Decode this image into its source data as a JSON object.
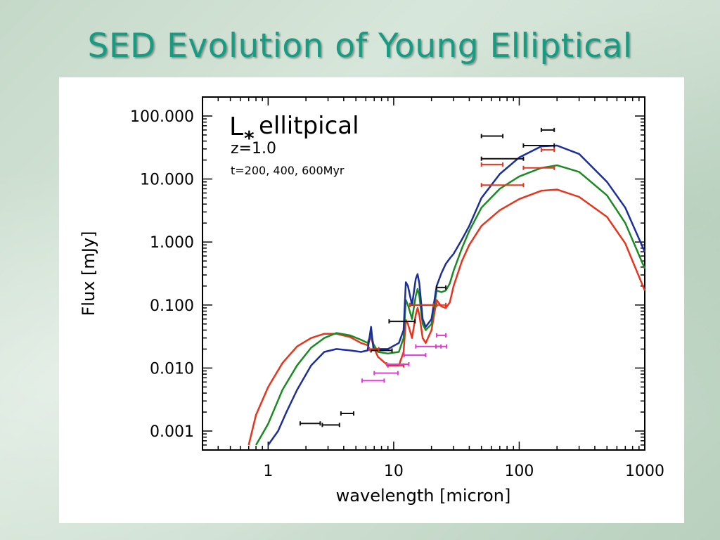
{
  "slide": {
    "title": "SED Evolution of Young Elliptical"
  },
  "chart_data": {
    "type": "line",
    "xlabel": "wavelength [micron]",
    "ylabel": "Flux [mJy]",
    "xscale": "log",
    "yscale": "log",
    "xlim": [
      0.3,
      1000
    ],
    "ylim": [
      0.0005,
      200
    ],
    "xticks": [
      {
        "v": 1,
        "label": "1"
      },
      {
        "v": 10,
        "label": "10"
      },
      {
        "v": 100,
        "label": "100"
      },
      {
        "v": 1000,
        "label": "1000"
      }
    ],
    "yticks": [
      {
        "v": 0.001,
        "label": "0.001"
      },
      {
        "v": 0.01,
        "label": "0.010"
      },
      {
        "v": 0.1,
        "label": "0.100"
      },
      {
        "v": 1,
        "label": "1.000"
      },
      {
        "v": 10,
        "label": "10.000"
      },
      {
        "v": 100,
        "label": "100.000"
      }
    ],
    "annotations": {
      "line1_main": "L",
      "line1_sub": "*",
      "line1_rest": " ellitpical",
      "line2": "z=1.0",
      "line3": "t=200, 400, 600Myr"
    },
    "series": [
      {
        "color": "#e8341c",
        "x": [
          0.7,
          0.8,
          1,
          1.3,
          1.7,
          2.2,
          2.8,
          3.5,
          4.5,
          5.5,
          6.2,
          6.6,
          6.9,
          7.5,
          9,
          11,
          12,
          12.5,
          13,
          14,
          15,
          15.5,
          16,
          17,
          18,
          20,
          22,
          24,
          26,
          28,
          30,
          35,
          40,
          50,
          70,
          100,
          150,
          200,
          300,
          500,
          700,
          1000
        ],
        "y": [
          0.0006,
          0.0018,
          0.005,
          0.012,
          0.022,
          0.03,
          0.035,
          0.035,
          0.031,
          0.025,
          0.023,
          0.032,
          0.022,
          0.015,
          0.011,
          0.011,
          0.018,
          0.058,
          0.05,
          0.03,
          0.07,
          0.09,
          0.07,
          0.03,
          0.025,
          0.04,
          0.12,
          0.095,
          0.09,
          0.11,
          0.2,
          0.5,
          0.9,
          1.8,
          3.2,
          4.8,
          6.5,
          6.8,
          5.2,
          2.5,
          0.95,
          0.17
        ]
      },
      {
        "color": "#1a8a22",
        "x": [
          0.8,
          0.9,
          1,
          1.3,
          1.7,
          2.2,
          2.8,
          3.5,
          4.5,
          5.5,
          6.2,
          6.6,
          6.9,
          7.5,
          9,
          11,
          12,
          12.5,
          13,
          14,
          15,
          15.5,
          16,
          17,
          18,
          20,
          22,
          24,
          26,
          28,
          30,
          35,
          40,
          50,
          70,
          100,
          150,
          200,
          300,
          500,
          700,
          1000
        ],
        "y": [
          0.0006,
          0.0009,
          0.0013,
          0.0045,
          0.011,
          0.021,
          0.03,
          0.036,
          0.033,
          0.028,
          0.025,
          0.035,
          0.024,
          0.018,
          0.017,
          0.018,
          0.03,
          0.12,
          0.1,
          0.06,
          0.14,
          0.18,
          0.14,
          0.05,
          0.04,
          0.05,
          0.17,
          0.16,
          0.17,
          0.22,
          0.35,
          0.8,
          1.5,
          3.5,
          7,
          11,
          15,
          16.5,
          13,
          5.5,
          2,
          0.38
        ]
      },
      {
        "color": "#1b2f9c",
        "x": [
          1,
          1.2,
          1.4,
          1.7,
          2.2,
          2.8,
          3.5,
          4.5,
          5.5,
          6.2,
          6.6,
          6.9,
          7.5,
          9,
          11,
          12,
          12.5,
          13,
          14,
          15,
          15.5,
          16,
          17,
          18,
          20,
          22,
          24,
          26,
          28,
          30,
          35,
          40,
          50,
          70,
          100,
          150,
          200,
          300,
          500,
          700,
          1000
        ],
        "y": [
          0.0006,
          0.001,
          0.002,
          0.0045,
          0.011,
          0.018,
          0.02,
          0.019,
          0.018,
          0.019,
          0.045,
          0.02,
          0.02,
          0.02,
          0.025,
          0.04,
          0.23,
          0.2,
          0.1,
          0.26,
          0.31,
          0.22,
          0.06,
          0.045,
          0.06,
          0.2,
          0.32,
          0.45,
          0.55,
          0.65,
          1.1,
          1.8,
          5,
          12,
          22,
          33,
          34,
          25,
          9,
          3.5,
          0.7
        ]
      }
    ],
    "error_bars": [
      {
        "color": "#111111",
        "x": 2.2,
        "xmin": 1.8,
        "xmax": 2.6,
        "y": 0.00132
      },
      {
        "color": "#111111",
        "x": 3.2,
        "xmin": 2.7,
        "xmax": 3.7,
        "y": 0.00125
      },
      {
        "color": "#111111",
        "x": 4.3,
        "xmin": 3.8,
        "xmax": 4.8,
        "y": 0.0019
      },
      {
        "color": "#111111",
        "x": 8.0,
        "xmin": 6.6,
        "xmax": 9.7,
        "y": 0.019
      },
      {
        "color": "#111111",
        "x": 12.0,
        "xmin": 9.2,
        "xmax": 14.8,
        "y": 0.055
      },
      {
        "color": "#111111",
        "x": 17.0,
        "xmin": 13.5,
        "xmax": 20.8,
        "y": 0.1
      },
      {
        "color": "#111111",
        "x": 24.0,
        "xmin": 22.0,
        "xmax": 26.0,
        "y": 0.19
      },
      {
        "color": "#111111",
        "x": 62.0,
        "xmin": 50.0,
        "xmax": 74.0,
        "y": 48.0
      },
      {
        "color": "#111111",
        "x": 76.0,
        "xmin": 50.0,
        "xmax": 108.0,
        "y": 21.0
      },
      {
        "color": "#111111",
        "x": 150.0,
        "xmin": 108.0,
        "xmax": 190.0,
        "y": 34.0
      },
      {
        "color": "#111111",
        "x": 170.0,
        "xmin": 150.0,
        "xmax": 190.0,
        "y": 60.0
      },
      {
        "color": "#e8341c",
        "x": 7.0,
        "xmin": 6.4,
        "xmax": 7.6,
        "y": 0.02
      },
      {
        "color": "#e8341c",
        "x": 10.5,
        "xmin": 9.0,
        "xmax": 12.0,
        "y": 0.011
      },
      {
        "color": "#e8341c",
        "x": 17.0,
        "xmin": 13.5,
        "xmax": 20.8,
        "y": 0.1
      },
      {
        "color": "#e8341c",
        "x": 24.0,
        "xmin": 22.0,
        "xmax": 26.0,
        "y": 0.1
      },
      {
        "color": "#e8341c",
        "x": 62.0,
        "xmin": 50.0,
        "xmax": 74.0,
        "y": 17.0
      },
      {
        "color": "#e8341c",
        "x": 76.0,
        "xmin": 50.0,
        "xmax": 108.0,
        "y": 8.0
      },
      {
        "color": "#e8341c",
        "x": 150.0,
        "xmin": 108.0,
        "xmax": 190.0,
        "y": 15.0
      },
      {
        "color": "#e8341c",
        "x": 170.0,
        "xmin": 150.0,
        "xmax": 190.0,
        "y": 29.0
      },
      {
        "color": "#e23ad6",
        "x": 7.0,
        "xmin": 5.6,
        "xmax": 8.4,
        "y": 0.0063
      },
      {
        "color": "#e23ad6",
        "x": 8.8,
        "xmin": 7.0,
        "xmax": 10.8,
        "y": 0.0083
      },
      {
        "color": "#e23ad6",
        "x": 11.0,
        "xmin": 8.8,
        "xmax": 13.2,
        "y": 0.0115
      },
      {
        "color": "#e23ad6",
        "x": 15.0,
        "xmin": 12.1,
        "xmax": 18.0,
        "y": 0.016
      },
      {
        "color": "#e23ad6",
        "x": 19.5,
        "xmin": 15.0,
        "xmax": 23.8,
        "y": 0.022
      },
      {
        "color": "#e23ad6",
        "x": 24.0,
        "xmin": 21.7,
        "xmax": 26.4,
        "y": 0.022
      },
      {
        "color": "#e23ad6",
        "x": 24.0,
        "xmin": 22.0,
        "xmax": 26.0,
        "y": 0.033
      }
    ]
  }
}
